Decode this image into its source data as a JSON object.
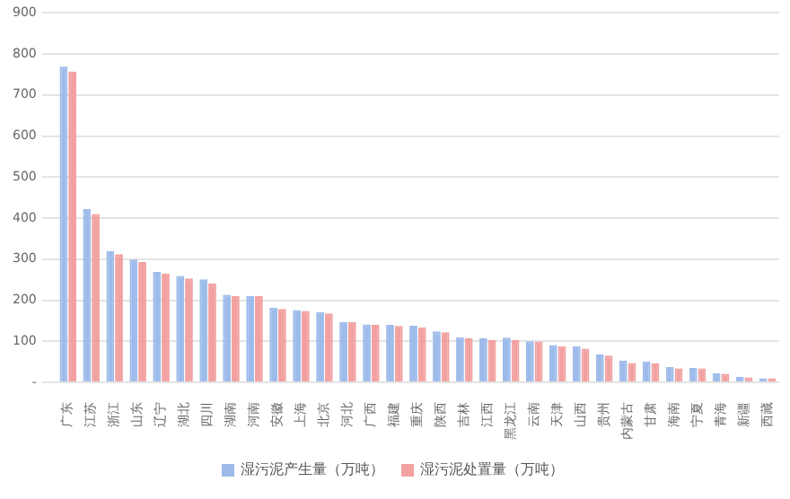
{
  "chart_data": {
    "type": "bar",
    "categories": [
      "广东",
      "江苏",
      "浙江",
      "山东",
      "辽宁",
      "湖北",
      "四川",
      "湖南",
      "河南",
      "安徽",
      "上海",
      "北京",
      "河北",
      "广西",
      "福建",
      "重庆",
      "陕西",
      "吉林",
      "江西",
      "黑龙江",
      "云南",
      "天津",
      "山西",
      "贵州",
      "内蒙古",
      "甘肃",
      "海南",
      "宁夏",
      "青海",
      "新疆",
      "西藏"
    ],
    "series": [
      {
        "name": "湿污泥产生量（万吨）",
        "color": "#9dbbea",
        "values": [
          769,
          422,
          319,
          299,
          269,
          259,
          251,
          213,
          210,
          182,
          176,
          171,
          147,
          141,
          140,
          138,
          124,
          110,
          107,
          109,
          100,
          91,
          88,
          68,
          53,
          51,
          37,
          35,
          22,
          13,
          10
        ]
      },
      {
        "name": "湿污泥处置量（万吨）",
        "color": "#f2a0a0",
        "values": [
          757,
          410,
          312,
          293,
          265,
          253,
          241,
          210,
          210,
          179,
          174,
          168,
          147,
          140,
          137,
          134,
          122,
          107,
          103,
          103,
          99,
          88,
          82,
          65,
          47,
          46,
          34,
          34,
          21,
          12,
          10
        ]
      }
    ],
    "ylim": [
      0,
      900
    ],
    "yticks": [
      {
        "value": 0,
        "label": "-"
      },
      100,
      200,
      300,
      400,
      500,
      600,
      700,
      800,
      900
    ],
    "grid": "y",
    "legend": "bottom"
  }
}
